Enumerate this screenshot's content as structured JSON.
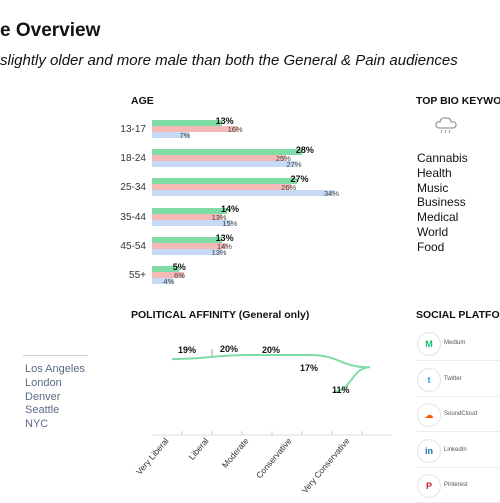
{
  "header": {
    "title": "e Overview",
    "subtitle": "slightly older and more male than both the General & Pain audiences"
  },
  "age_section": {
    "heading": "AGE",
    "legend_colors": {
      "main": "#7fdca4",
      "pain": "#f4b8b5",
      "general": "#c6daf5"
    },
    "rows": [
      {
        "label": "13-17",
        "values": [
          "13%",
          "16%",
          "7%"
        ]
      },
      {
        "label": "18-24",
        "values": [
          "28%",
          "25%",
          "27%"
        ]
      },
      {
        "label": "25-34",
        "values": [
          "27%",
          "26%",
          "34%"
        ]
      },
      {
        "label": "35-44",
        "values": [
          "14%",
          "13%",
          "15%"
        ]
      },
      {
        "label": "45-54",
        "values": [
          "13%",
          "14%",
          "13%"
        ]
      },
      {
        "label": "55+",
        "values": [
          "5%",
          "6%",
          "4%"
        ]
      }
    ]
  },
  "keywords_section": {
    "heading": "TOP BIO KEYWO",
    "icon": "cloud-icon",
    "items": [
      "Cannabis",
      "Health",
      "Music",
      "Business",
      "Medical",
      "World",
      "Food"
    ]
  },
  "political_section": {
    "heading": "POLITICAL AFFINITY (General only)",
    "categories": [
      "Very Liberal",
      "Liberal",
      "Moderate",
      "Conservative",
      "Very Conservative"
    ],
    "values": [
      19,
      20,
      20,
      17,
      11
    ],
    "value_labels": [
      "19%",
      "20%",
      "20%",
      "17%",
      "11%"
    ],
    "line_color": "#7fdca4"
  },
  "cities": [
    "Los Angeles",
    "London",
    "Denver",
    "Seattle",
    "NYC"
  ],
  "social_section": {
    "heading": "SOCIAL PLATFO",
    "items": [
      {
        "label": "Medium",
        "icon": "medium-icon",
        "glyph": "M",
        "color": "#14c26e"
      },
      {
        "label": "Twitter",
        "icon": "twitter-icon",
        "glyph": "t",
        "color": "#1da1f2"
      },
      {
        "label": "SoundCloud",
        "icon": "soundcloud-icon",
        "glyph": "☁",
        "color": "#ff5500"
      },
      {
        "label": "LinkedIn",
        "icon": "linkedin-icon",
        "glyph": "in",
        "color": "#0e76a8"
      },
      {
        "label": "Pinterest",
        "icon": "pinterest-icon",
        "glyph": "P",
        "color": "#cb2027"
      }
    ]
  },
  "chart_data": [
    {
      "type": "bar",
      "title": "AGE",
      "categories": [
        "13-17",
        "18-24",
        "25-34",
        "35-44",
        "45-54",
        "55+"
      ],
      "series": [
        {
          "values": [
            13,
            28,
            27,
            14,
            13,
            5
          ]
        },
        {
          "values": [
            16,
            25,
            26,
            13,
            14,
            6
          ]
        },
        {
          "values": [
            7,
            27,
            34,
            15,
            13,
            4
          ]
        }
      ],
      "xlim": [
        0,
        34
      ]
    },
    {
      "type": "line",
      "title": "POLITICAL AFFINITY (General only)",
      "categories": [
        "Very Liberal",
        "Liberal",
        "Moderate",
        "Conservative",
        "Very Conservative"
      ],
      "series": [
        {
          "values": [
            19,
            20,
            20,
            17,
            11
          ]
        }
      ]
    }
  ]
}
